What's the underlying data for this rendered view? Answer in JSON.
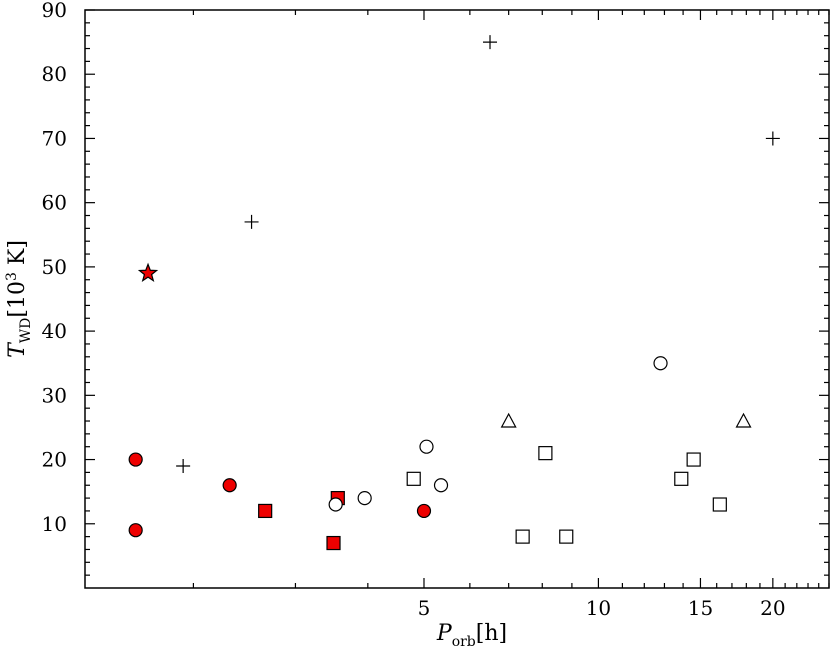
{
  "chart_data": {
    "type": "scatter",
    "xlabel": {
      "main": "P",
      "sub": "orb",
      "unit": "[h]"
    },
    "ylabel": {
      "main": "T",
      "sub": "WD",
      "unit_prefix": "[10",
      "unit_sup": "3",
      "unit_suffix": " K]"
    },
    "x_scale": "log",
    "xlim": [
      1.3,
      25
    ],
    "ylim": [
      0,
      90
    ],
    "x_ticks": [
      5,
      10,
      15,
      20
    ],
    "x_tick_labels": [
      "5",
      "10",
      "15",
      "20"
    ],
    "y_ticks": [
      10,
      20,
      30,
      40,
      50,
      60,
      70,
      80,
      90
    ],
    "y_tick_labels": [
      "10",
      "20",
      "30",
      "40",
      "50",
      "60",
      "70",
      "80",
      "90"
    ],
    "grid": false,
    "colors": {
      "red": "#ee0000",
      "edge": "#000000",
      "open": "#ffffff"
    },
    "series": [
      {
        "marker": "plus",
        "fill": "none",
        "points": [
          [
            1.92,
            19
          ],
          [
            2.52,
            57
          ],
          [
            6.5,
            85
          ],
          [
            20.0,
            70
          ]
        ]
      },
      {
        "marker": "star",
        "fill": "red",
        "points": [
          [
            1.67,
            49
          ]
        ]
      },
      {
        "marker": "circle",
        "fill": "red",
        "points": [
          [
            1.59,
            20
          ],
          [
            1.59,
            9
          ],
          [
            2.31,
            16
          ],
          [
            5.0,
            12
          ]
        ]
      },
      {
        "marker": "square",
        "fill": "red",
        "points": [
          [
            2.66,
            12
          ],
          [
            3.49,
            7
          ],
          [
            3.55,
            14
          ]
        ]
      },
      {
        "marker": "circle",
        "fill": "open",
        "points": [
          [
            3.52,
            13
          ],
          [
            3.95,
            14
          ],
          [
            5.05,
            22
          ],
          [
            5.35,
            16
          ],
          [
            12.8,
            35
          ]
        ]
      },
      {
        "marker": "square",
        "fill": "open",
        "points": [
          [
            4.8,
            17
          ],
          [
            7.4,
            8
          ],
          [
            8.1,
            21
          ],
          [
            8.8,
            8
          ],
          [
            13.9,
            17
          ],
          [
            14.6,
            20
          ],
          [
            16.2,
            13
          ]
        ]
      },
      {
        "marker": "triangle",
        "fill": "open",
        "points": [
          [
            7.0,
            26
          ],
          [
            17.8,
            26
          ]
        ]
      }
    ]
  }
}
